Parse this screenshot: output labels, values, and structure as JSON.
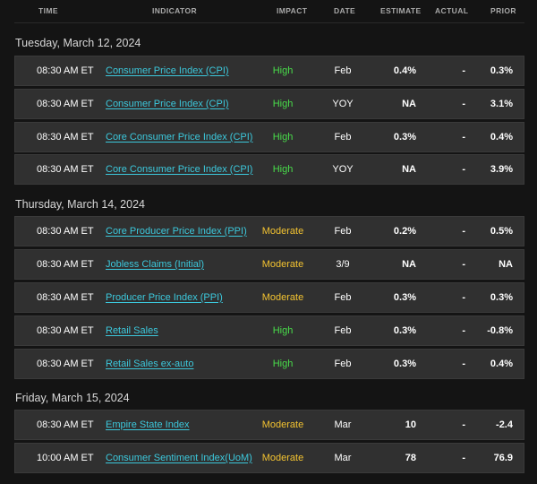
{
  "header": {
    "time": "TIME",
    "indicator": "INDICATOR",
    "impact": "IMPACT",
    "date": "DATE",
    "estimate": "ESTIMATE",
    "actual": "ACTUAL",
    "prior": "PRIOR"
  },
  "colors": {
    "link": "#3cc8dc",
    "impact_high": "#49dc4a",
    "impact_moderate": "#f3c331",
    "row_bg": "#303030",
    "page_bg": "#141414"
  },
  "groups": [
    {
      "title": "Tuesday, March 12, 2024",
      "rows": [
        {
          "time": "08:30 AM ET",
          "indicator": "Consumer Price Index (CPI)",
          "impact": "High",
          "date": "Feb",
          "estimate": "0.4%",
          "actual": "-",
          "prior": "0.3%"
        },
        {
          "time": "08:30 AM ET",
          "indicator": "Consumer Price Index (CPI)",
          "impact": "High",
          "date": "YOY",
          "estimate": "NA",
          "actual": "-",
          "prior": "3.1%"
        },
        {
          "time": "08:30 AM ET",
          "indicator": "Core Consumer Price Index (CPI)",
          "impact": "High",
          "date": "Feb",
          "estimate": "0.3%",
          "actual": "-",
          "prior": "0.4%"
        },
        {
          "time": "08:30 AM ET",
          "indicator": "Core Consumer Price Index (CPI)",
          "impact": "High",
          "date": "YOY",
          "estimate": "NA",
          "actual": "-",
          "prior": "3.9%"
        }
      ]
    },
    {
      "title": "Thursday, March 14, 2024",
      "rows": [
        {
          "time": "08:30 AM ET",
          "indicator": "Core Producer Price Index (PPI)",
          "impact": "Moderate",
          "date": "Feb",
          "estimate": "0.2%",
          "actual": "-",
          "prior": "0.5%"
        },
        {
          "time": "08:30 AM ET",
          "indicator": "Jobless Claims (Initial)",
          "impact": "Moderate",
          "date": "3/9",
          "estimate": "NA",
          "actual": "-",
          "prior": "NA"
        },
        {
          "time": "08:30 AM ET",
          "indicator": "Producer Price Index (PPI)",
          "impact": "Moderate",
          "date": "Feb",
          "estimate": "0.3%",
          "actual": "-",
          "prior": "0.3%"
        },
        {
          "time": "08:30 AM ET",
          "indicator": "Retail Sales",
          "impact": "High",
          "date": "Feb",
          "estimate": "0.3%",
          "actual": "-",
          "prior": "-0.8%"
        },
        {
          "time": "08:30 AM ET",
          "indicator": "Retail Sales ex-auto",
          "impact": "High",
          "date": "Feb",
          "estimate": "0.3%",
          "actual": "-",
          "prior": "0.4%"
        }
      ]
    },
    {
      "title": "Friday, March 15, 2024",
      "rows": [
        {
          "time": "08:30 AM ET",
          "indicator": "Empire State Index",
          "impact": "Moderate",
          "date": "Mar",
          "estimate": "10",
          "actual": "-",
          "prior": "-2.4"
        },
        {
          "time": "10:00 AM ET",
          "indicator": "Consumer Sentiment Index(UoM)",
          "impact": "Moderate",
          "date": "Mar",
          "estimate": "78",
          "actual": "-",
          "prior": "76.9"
        }
      ]
    }
  ]
}
